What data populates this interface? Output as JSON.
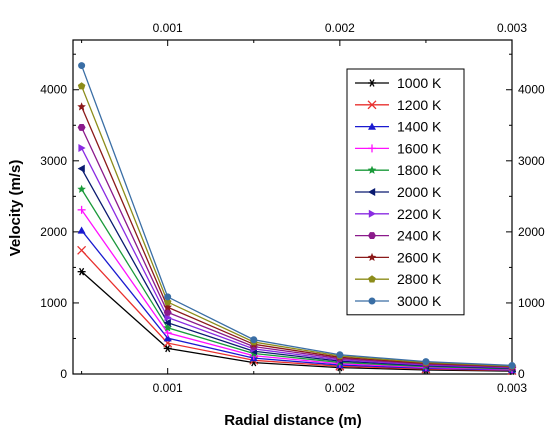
{
  "chart_data": {
    "type": "line",
    "title": "",
    "xlabel": "Radial distance (m)",
    "ylabel": "Velocity (m/s)",
    "xlim": [
      0.00045,
      0.003
    ],
    "ylim": [
      0,
      4700
    ],
    "x_ticks": [
      0.001,
      0.002,
      0.003
    ],
    "x_tick_labels": [
      "0.001",
      "0.002",
      "0.003"
    ],
    "y_ticks": [
      0,
      1000,
      2000,
      3000,
      4000
    ],
    "y_tick_labels": [
      "0",
      "1000",
      "2000",
      "3000",
      "4000"
    ],
    "top_axis_tick_labels": [
      "0.001",
      "0.002",
      "0.003"
    ],
    "right_axis_tick_labels": [
      "0",
      "1000",
      "2000",
      "3000",
      "4000"
    ],
    "grid": false,
    "legend_position": "top-right",
    "x": [
      0.0005,
      0.001,
      0.0015,
      0.002,
      0.0025,
      0.003
    ],
    "series": [
      {
        "name": "1000 K",
        "color": "#000000",
        "marker": "asterisk",
        "values": [
          1440,
          360,
          160,
          90,
          57,
          40
        ]
      },
      {
        "name": "1200 K",
        "color": "#e8302e",
        "marker": "x",
        "values": [
          1740,
          435,
          193,
          109,
          70,
          48
        ]
      },
      {
        "name": "1400 K",
        "color": "#1a1ad0",
        "marker": "triangle-up",
        "values": [
          2020,
          505,
          224,
          126,
          81,
          56
        ]
      },
      {
        "name": "1600 K",
        "color": "#ff10ff",
        "marker": "plus",
        "values": [
          2310,
          578,
          257,
          144,
          92,
          64
        ]
      },
      {
        "name": "1800 K",
        "color": "#1a9a3a",
        "marker": "star",
        "values": [
          2600,
          650,
          289,
          163,
          104,
          72
        ]
      },
      {
        "name": "2000 K",
        "color": "#0a1a70",
        "marker": "triangle-left",
        "values": [
          2890,
          722,
          321,
          181,
          116,
          80
        ]
      },
      {
        "name": "2200 K",
        "color": "#8a2be2",
        "marker": "triangle-right",
        "values": [
          3180,
          795,
          353,
          199,
          127,
          88
        ]
      },
      {
        "name": "2400 K",
        "color": "#8b1a8b",
        "marker": "hexagon",
        "values": [
          3470,
          868,
          386,
          217,
          139,
          96
        ]
      },
      {
        "name": "2600 K",
        "color": "#8b1a1a",
        "marker": "star",
        "values": [
          3760,
          940,
          418,
          235,
          150,
          104
        ]
      },
      {
        "name": "2800 K",
        "color": "#8c8c1a",
        "marker": "pentagon",
        "values": [
          4050,
          1012,
          450,
          253,
          162,
          112
        ]
      },
      {
        "name": "3000 K",
        "color": "#3a6ea5",
        "marker": "circle",
        "values": [
          4340,
          1085,
          482,
          271,
          174,
          120
        ]
      }
    ]
  }
}
